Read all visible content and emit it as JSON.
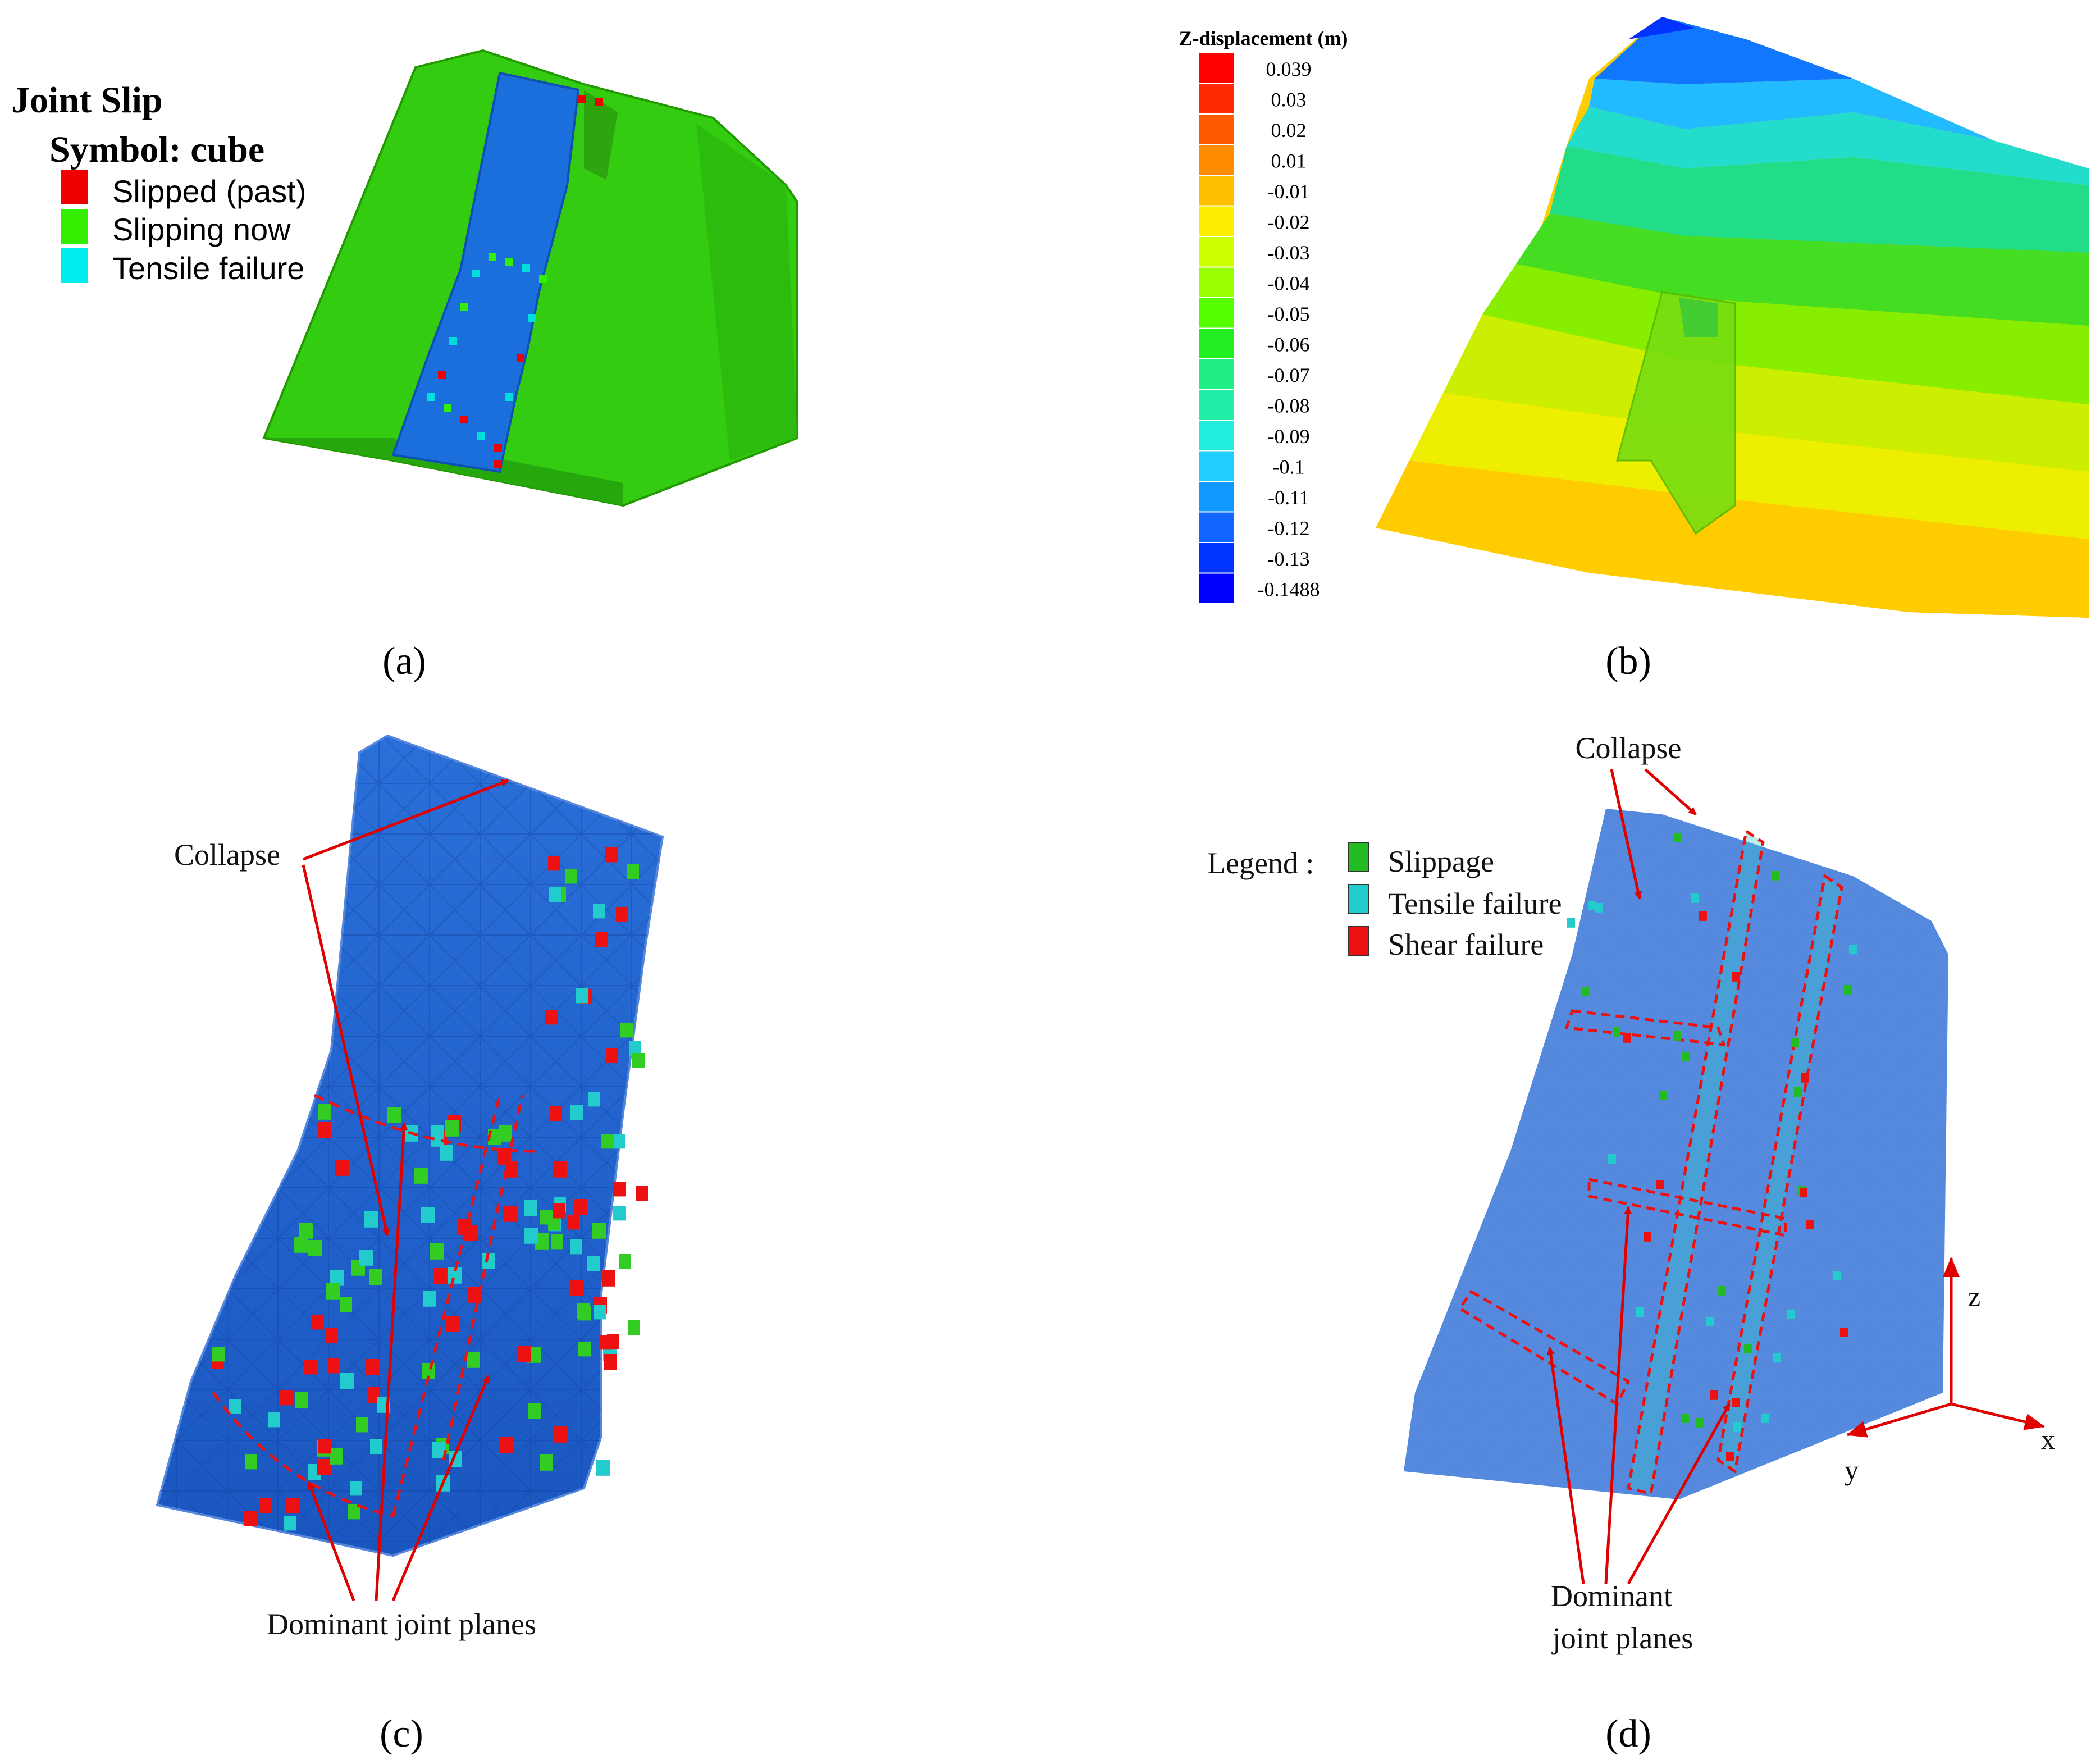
{
  "panels": {
    "a": {
      "caption": "(a)",
      "legend_title": "Joint Slip",
      "legend_subtitle": "Symbol: cube",
      "legend_items": [
        {
          "label": "Slipped (past)",
          "color": "#ee0000"
        },
        {
          "label": "Slipping now",
          "color": "#33ee00"
        },
        {
          "label": "Tensile failure",
          "color": "#00eeee"
        }
      ]
    },
    "b": {
      "caption": "(b)",
      "colorbar_title": "Z-displacement (m)",
      "colorbar": [
        {
          "label": "0.039",
          "color": "#ff0000"
        },
        {
          "label": "0.03",
          "color": "#ff2a00"
        },
        {
          "label": "0.02",
          "color": "#ff5a00"
        },
        {
          "label": "0.01",
          "color": "#ff8c00"
        },
        {
          "label": "-0.01",
          "color": "#ffbf00"
        },
        {
          "label": "-0.02",
          "color": "#ffee00"
        },
        {
          "label": "-0.03",
          "color": "#ccff00"
        },
        {
          "label": "-0.04",
          "color": "#99ff00"
        },
        {
          "label": "-0.05",
          "color": "#55ff00"
        },
        {
          "label": "-0.06",
          "color": "#22ee22"
        },
        {
          "label": "-0.07",
          "color": "#22ee88"
        },
        {
          "label": "-0.08",
          "color": "#22eeaa"
        },
        {
          "label": "-0.09",
          "color": "#22eedd"
        },
        {
          "label": "-0.1",
          "color": "#22ccff"
        },
        {
          "label": "-0.11",
          "color": "#1199ff"
        },
        {
          "label": "-0.12",
          "color": "#1166ff"
        },
        {
          "label": "-0.13",
          "color": "#0033ff"
        },
        {
          "label": "-0.1488",
          "color": "#0000ff"
        }
      ]
    },
    "c": {
      "caption": "(c)",
      "annotation_top": "Collapse",
      "annotation_bottom": "Dominant joint planes"
    },
    "d": {
      "caption": "(d)",
      "annotation_top": "Collapse",
      "annotation_bottom_line1": "Dominant",
      "annotation_bottom_line2": "joint planes",
      "legend_label": "Legend :",
      "legend_items": [
        {
          "label": "Slippage",
          "color": "#22bb22"
        },
        {
          "label": "Tensile  failure",
          "color": "#22cccc"
        },
        {
          "label": "Shear  failure",
          "color": "#ee1111"
        }
      ],
      "axes": {
        "z": "z",
        "x": "x",
        "y": "y"
      }
    }
  }
}
